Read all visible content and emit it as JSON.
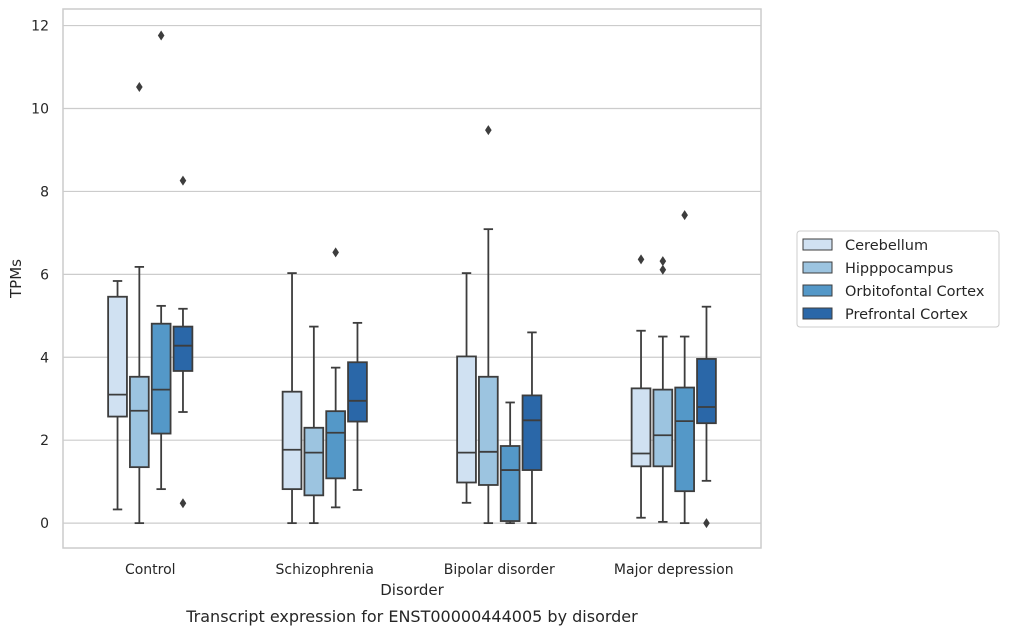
{
  "chart_data": {
    "type": "boxplot",
    "caption": "Transcript expression for ENST00000444005 by disorder",
    "xlabel": "Disorder",
    "ylabel": "TPMs",
    "ylim": [
      -0.6,
      12.4
    ],
    "yticks": [
      0,
      2,
      4,
      6,
      8,
      10,
      12
    ],
    "grid": true,
    "legend_position": "right",
    "categories": [
      "Control",
      "Schizophrenia",
      "Bipolar disorder",
      "Major depression"
    ],
    "series": [
      {
        "name": "Cerebellum",
        "color": "#d0e1f2",
        "boxes": [
          {
            "whisker_low": 0.33,
            "q1": 2.57,
            "median": 3.1,
            "q3": 5.46,
            "whisker_high": 5.84,
            "outliers": []
          },
          {
            "whisker_low": 0.0,
            "q1": 0.82,
            "median": 1.77,
            "q3": 3.17,
            "whisker_high": 6.03,
            "outliers": []
          },
          {
            "whisker_low": 0.49,
            "q1": 0.98,
            "median": 1.7,
            "q3": 4.02,
            "whisker_high": 6.03,
            "outliers": []
          },
          {
            "whisker_low": 0.13,
            "q1": 1.37,
            "median": 1.68,
            "q3": 3.25,
            "whisker_high": 4.64,
            "outliers": [
              6.36
            ]
          }
        ]
      },
      {
        "name": "Hipppocampus",
        "color": "#9cc4e0",
        "boxes": [
          {
            "whisker_low": 0.0,
            "q1": 1.35,
            "median": 2.71,
            "q3": 3.53,
            "whisker_high": 6.18,
            "outliers": [
              10.52
            ]
          },
          {
            "whisker_low": 0.0,
            "q1": 0.67,
            "median": 1.7,
            "q3": 2.3,
            "whisker_high": 4.74,
            "outliers": []
          },
          {
            "whisker_low": 0.0,
            "q1": 0.92,
            "median": 1.72,
            "q3": 3.53,
            "whisker_high": 7.09,
            "outliers": [
              9.48
            ]
          },
          {
            "whisker_low": 0.03,
            "q1": 1.37,
            "median": 2.12,
            "q3": 3.22,
            "whisker_high": 4.5,
            "outliers": [
              6.11,
              6.32
            ]
          }
        ]
      },
      {
        "name": "Orbitofontal Cortex",
        "color": "#5498c8",
        "boxes": [
          {
            "whisker_low": 0.82,
            "q1": 2.16,
            "median": 3.22,
            "q3": 4.81,
            "whisker_high": 5.24,
            "outliers": [
              11.76
            ]
          },
          {
            "whisker_low": 0.38,
            "q1": 1.08,
            "median": 2.18,
            "q3": 2.7,
            "whisker_high": 3.75,
            "outliers": [
              6.53
            ]
          },
          {
            "whisker_low": 0.0,
            "q1": 0.05,
            "median": 1.28,
            "q3": 1.86,
            "whisker_high": 2.91,
            "outliers": []
          },
          {
            "whisker_low": 0.0,
            "q1": 0.77,
            "median": 2.46,
            "q3": 3.27,
            "whisker_high": 4.5,
            "outliers": [
              7.43
            ]
          }
        ]
      },
      {
        "name": "Prefrontal Cortex",
        "color": "#2a67a8",
        "boxes": [
          {
            "whisker_low": 2.68,
            "q1": 3.67,
            "median": 4.28,
            "q3": 4.74,
            "whisker_high": 5.17,
            "outliers": [
              0.48,
              8.26
            ]
          },
          {
            "whisker_low": 0.8,
            "q1": 2.45,
            "median": 2.95,
            "q3": 3.88,
            "whisker_high": 4.83,
            "outliers": []
          },
          {
            "whisker_low": 0.0,
            "q1": 1.28,
            "median": 2.48,
            "q3": 3.08,
            "whisker_high": 4.6,
            "outliers": []
          },
          {
            "whisker_low": 1.02,
            "q1": 2.41,
            "median": 2.8,
            "q3": 3.96,
            "whisker_high": 5.22,
            "outliers": [
              0.0
            ]
          }
        ]
      }
    ]
  }
}
